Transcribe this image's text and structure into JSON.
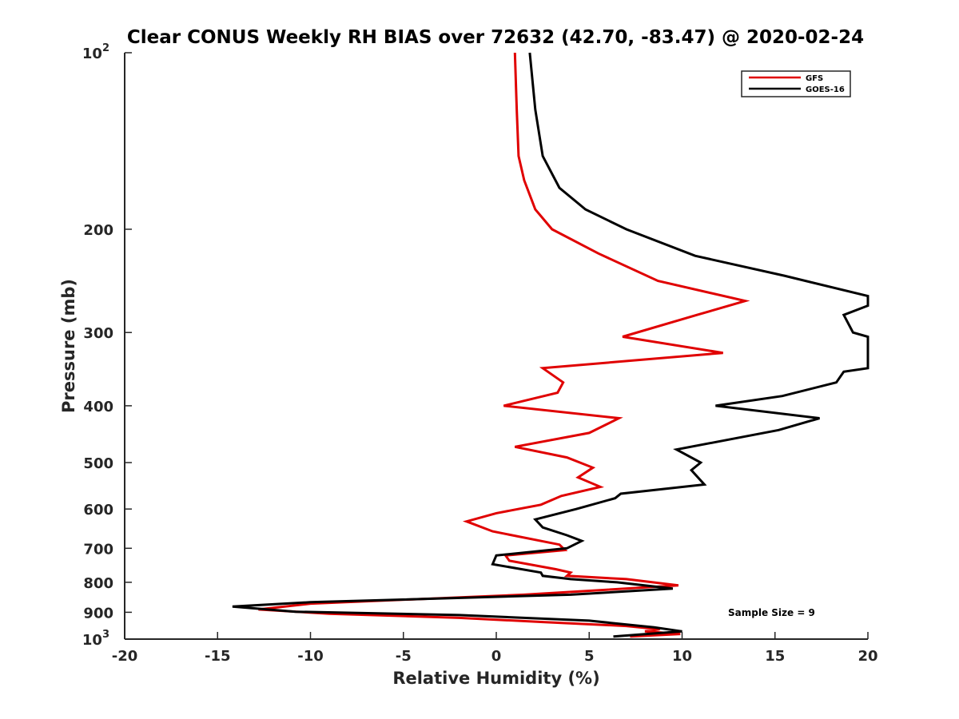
{
  "chart_data": {
    "type": "line",
    "title": "Clear CONUS Weekly RH BIAS over 72632 (42.70, -83.47) @ 2020-02-24",
    "xlabel": "Relative Humidity (%)",
    "ylabel": "Pressure (mb)",
    "xlim": [
      -20,
      20
    ],
    "ylim": [
      100,
      1000
    ],
    "yscale": "log",
    "yreversed": true,
    "grid": false,
    "legend_position": "top-right",
    "x_ticks": [
      "-20",
      "-15",
      "-10",
      "-5",
      "0",
      "5",
      "10",
      "15",
      "20"
    ],
    "x_tick_values": [
      -20,
      -15,
      -10,
      -5,
      0,
      5,
      10,
      15,
      20
    ],
    "y_ticks": [
      {
        "value": 100,
        "base": "10",
        "exp": "2"
      },
      {
        "value": 200,
        "base": "200",
        "exp": ""
      },
      {
        "value": 300,
        "base": "300",
        "exp": ""
      },
      {
        "value": 400,
        "base": "400",
        "exp": ""
      },
      {
        "value": 500,
        "base": "500",
        "exp": ""
      },
      {
        "value": 600,
        "base": "600",
        "exp": ""
      },
      {
        "value": 700,
        "base": "700",
        "exp": ""
      },
      {
        "value": 800,
        "base": "800",
        "exp": ""
      },
      {
        "value": 900,
        "base": "900",
        "exp": ""
      },
      {
        "value": 1000,
        "base": "10",
        "exp": "3"
      }
    ],
    "annotation": "Sample Size = 9",
    "series": [
      {
        "name": "GFS",
        "color": "#e00000",
        "points": [
          [
            1.0,
            100
          ],
          [
            1.1,
            125
          ],
          [
            1.2,
            150
          ],
          [
            1.5,
            165
          ],
          [
            2.1,
            185
          ],
          [
            3.0,
            200
          ],
          [
            5.5,
            220
          ],
          [
            8.7,
            245
          ],
          [
            13.4,
            265
          ],
          [
            10.8,
            280
          ],
          [
            6.8,
            305
          ],
          [
            12.2,
            325
          ],
          [
            2.5,
            345
          ],
          [
            3.6,
            365
          ],
          [
            3.3,
            380
          ],
          [
            0.4,
            400
          ],
          [
            6.6,
            420
          ],
          [
            5.0,
            445
          ],
          [
            1.0,
            470
          ],
          [
            3.8,
            490
          ],
          [
            5.2,
            510
          ],
          [
            4.4,
            530
          ],
          [
            5.6,
            550
          ],
          [
            3.5,
            570
          ],
          [
            2.4,
            590
          ],
          [
            0.0,
            610
          ],
          [
            -1.6,
            630
          ],
          [
            -0.2,
            655
          ],
          [
            3.4,
            690
          ],
          [
            3.7,
            705
          ],
          [
            0.5,
            720
          ],
          [
            0.7,
            735
          ],
          [
            3.2,
            760
          ],
          [
            4.0,
            770
          ],
          [
            3.8,
            780
          ],
          [
            7.0,
            790
          ],
          [
            9.8,
            810
          ],
          [
            1.5,
            840
          ],
          [
            -10.0,
            870
          ],
          [
            -12.8,
            890
          ],
          [
            -9.0,
            905
          ],
          [
            -2.0,
            920
          ],
          [
            2.5,
            935
          ],
          [
            7.0,
            950
          ],
          [
            8.8,
            962
          ],
          [
            8.0,
            970
          ],
          [
            9.9,
            980
          ],
          [
            7.2,
            990
          ]
        ]
      },
      {
        "name": "GOES-16",
        "color": "#000000",
        "points": [
          [
            1.8,
            100
          ],
          [
            2.1,
            125
          ],
          [
            2.5,
            150
          ],
          [
            3.4,
            170
          ],
          [
            4.8,
            185
          ],
          [
            7.0,
            200
          ],
          [
            10.7,
            222
          ],
          [
            15.5,
            240
          ],
          [
            20.0,
            260
          ],
          [
            20.0,
            270
          ],
          [
            18.7,
            280
          ],
          [
            19.2,
            300
          ],
          [
            20.0,
            305
          ],
          [
            20.0,
            345
          ],
          [
            18.7,
            350
          ],
          [
            18.3,
            365
          ],
          [
            15.4,
            385
          ],
          [
            11.8,
            400
          ],
          [
            17.4,
            420
          ],
          [
            15.2,
            440
          ],
          [
            9.7,
            475
          ],
          [
            11.0,
            500
          ],
          [
            10.5,
            515
          ],
          [
            11.2,
            545
          ],
          [
            6.7,
            565
          ],
          [
            6.4,
            575
          ],
          [
            4.3,
            600
          ],
          [
            2.1,
            625
          ],
          [
            2.5,
            645
          ],
          [
            3.8,
            665
          ],
          [
            4.6,
            680
          ],
          [
            3.8,
            700
          ],
          [
            0.0,
            720
          ],
          [
            -0.2,
            745
          ],
          [
            2.4,
            770
          ],
          [
            2.5,
            780
          ],
          [
            4.0,
            790
          ],
          [
            6.5,
            800
          ],
          [
            9.5,
            820
          ],
          [
            4.0,
            840
          ],
          [
            -10.0,
            865
          ],
          [
            -14.2,
            880
          ],
          [
            -10.8,
            898
          ],
          [
            -2.0,
            910
          ],
          [
            5.0,
            930
          ],
          [
            8.5,
            955
          ],
          [
            10.0,
            970
          ],
          [
            6.3,
            990
          ]
        ]
      }
    ]
  }
}
